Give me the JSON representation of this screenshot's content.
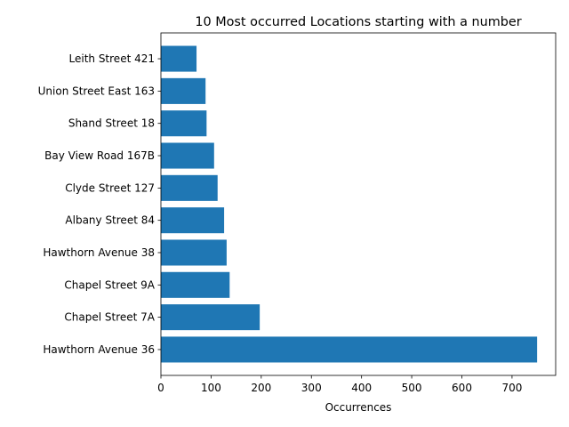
{
  "chart_data": {
    "type": "bar",
    "orientation": "horizontal",
    "title": "10 Most occurred Locations starting with a number",
    "xlabel": "Occurrences",
    "ylabel": "",
    "categories": [
      "Hawthorn Avenue 36",
      "Chapel Street 7A",
      "Chapel Street 9A",
      "Hawthorn Avenue 38",
      "Albany Street 84",
      "Clyde Street 127",
      "Bay View Road 167B",
      "Shand Street 18",
      "Union Street East 163",
      "Leith Street 421"
    ],
    "values": [
      750,
      197,
      137,
      131,
      126,
      113,
      106,
      91,
      89,
      71
    ],
    "xlim": [
      0,
      787
    ],
    "xticks": [
      0,
      100,
      200,
      300,
      400,
      500,
      600,
      700
    ],
    "grid": false,
    "legend": "none",
    "bar_color": "#1f77b4"
  }
}
